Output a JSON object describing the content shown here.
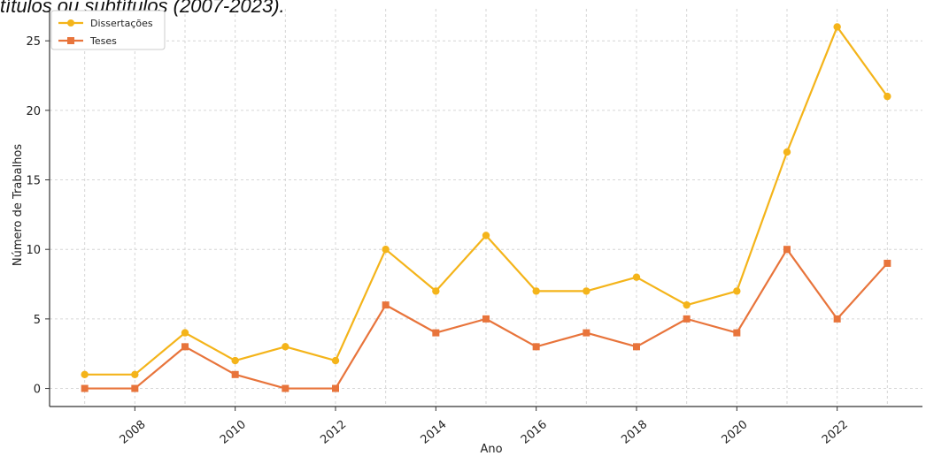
{
  "caption": "títulos ou subtítulos (2007-2023).",
  "chart_data": {
    "type": "line",
    "title": "",
    "xlabel": "Ano",
    "ylabel": "Número de Trabalhos",
    "x": [
      2007,
      2008,
      2009,
      2010,
      2011,
      2012,
      2013,
      2014,
      2015,
      2016,
      2017,
      2018,
      2019,
      2020,
      2021,
      2022,
      2023
    ],
    "xticks": [
      "2008",
      "2010",
      "2012",
      "2014",
      "2016",
      "2018",
      "2020",
      "2022"
    ],
    "yticks": [
      "0",
      "5",
      "10",
      "15",
      "20",
      "25"
    ],
    "xlim": [
      2006.3,
      2023.7
    ],
    "ylim": [
      -1.3,
      27.3
    ],
    "grid": true,
    "legend_position": "top-left",
    "series": [
      {
        "name": "Dissertações",
        "color": "#f4b41a",
        "marker": "circle",
        "values": [
          1,
          1,
          4,
          2,
          3,
          2,
          10,
          7,
          11,
          7,
          7,
          8,
          6,
          7,
          17,
          26,
          21
        ]
      },
      {
        "name": "Teses",
        "color": "#e8743b",
        "marker": "square",
        "values": [
          0,
          0,
          3,
          1,
          0,
          0,
          6,
          4,
          5,
          3,
          4,
          3,
          5,
          4,
          10,
          5,
          9
        ]
      }
    ]
  }
}
